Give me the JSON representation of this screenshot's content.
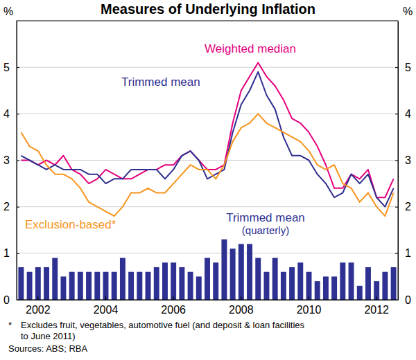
{
  "chart_data": {
    "type": "line",
    "title": "Measures of Underlying Inflation",
    "y_label": "%",
    "categories": [
      null,
      null,
      "2002",
      null,
      null,
      null,
      null,
      null,
      null,
      null,
      "2004",
      null,
      null,
      null,
      null,
      null,
      null,
      null,
      "2006",
      null,
      null,
      null,
      null,
      null,
      null,
      null,
      "2008",
      null,
      null,
      null,
      null,
      null,
      null,
      null,
      "2010",
      null,
      null,
      null,
      null,
      null,
      null,
      null,
      "2012",
      null,
      null
    ],
    "series": [
      {
        "name": "Weighted median",
        "color": "#e5007d",
        "values": [
          3.0,
          3.0,
          2.9,
          3.0,
          2.9,
          3.1,
          2.8,
          2.7,
          2.5,
          2.6,
          2.8,
          2.7,
          2.6,
          2.6,
          2.7,
          2.8,
          2.8,
          2.9,
          2.9,
          3.1,
          3.2,
          3.0,
          2.8,
          2.8,
          2.9,
          3.8,
          4.5,
          4.8,
          5.1,
          4.8,
          4.6,
          4.3,
          3.9,
          3.8,
          3.6,
          3.3,
          2.9,
          2.4,
          2.4,
          2.7,
          2.6,
          2.8,
          2.2,
          2.2,
          2.6
        ]
      },
      {
        "name": "Trimmed mean",
        "color": "#2e2e8f",
        "values": [
          3.1,
          3.0,
          2.9,
          2.8,
          2.9,
          2.8,
          2.8,
          2.8,
          2.7,
          2.7,
          2.5,
          2.6,
          2.6,
          2.8,
          2.8,
          2.8,
          2.8,
          2.6,
          2.8,
          3.1,
          3.2,
          3.0,
          2.6,
          2.7,
          2.8,
          3.6,
          4.2,
          4.5,
          4.9,
          4.4,
          4.1,
          3.5,
          3.1,
          3.1,
          3.0,
          2.7,
          2.5,
          2.2,
          2.3,
          2.7,
          2.5,
          2.7,
          2.2,
          2.0,
          2.4
        ]
      },
      {
        "name": "Exclusion-based*",
        "color": "#f7941d",
        "values": [
          3.6,
          3.3,
          3.2,
          2.9,
          2.7,
          2.7,
          2.6,
          2.4,
          2.1,
          2.0,
          1.9,
          1.8,
          2.0,
          2.3,
          2.3,
          2.4,
          2.3,
          2.3,
          2.5,
          2.7,
          2.9,
          2.8,
          2.8,
          2.6,
          2.9,
          3.4,
          3.7,
          3.8,
          4.0,
          3.8,
          3.7,
          3.6,
          3.5,
          3.4,
          3.2,
          2.9,
          2.8,
          2.9,
          2.5,
          2.4,
          2.1,
          2.3,
          2.0,
          1.8,
          2.3
        ]
      },
      {
        "name": "Trimmed mean (quarterly)",
        "type": "bar",
        "color": "#2e3192",
        "values": [
          0.7,
          0.6,
          0.7,
          0.7,
          0.9,
          0.5,
          0.6,
          0.6,
          0.6,
          0.6,
          0.6,
          0.6,
          0.9,
          0.6,
          0.6,
          0.6,
          0.7,
          0.8,
          0.8,
          0.7,
          0.6,
          0.5,
          0.9,
          0.8,
          1.3,
          1.1,
          1.2,
          1.2,
          0.9,
          0.6,
          0.9,
          0.6,
          0.7,
          0.8,
          0.6,
          0.4,
          0.5,
          0.5,
          0.8,
          0.8,
          0.3,
          0.7,
          0.4,
          0.6,
          0.7
        ]
      }
    ],
    "ylim": [
      0,
      6
    ],
    "yticks": [
      0,
      1,
      2,
      3,
      4,
      5
    ],
    "grid": true,
    "notes": [
      "*",
      "Excludes fruit, vegetables, automotive fuel (and deposit & loan facilities",
      "to June 2011)",
      "Sources: ABS; RBA"
    ]
  }
}
